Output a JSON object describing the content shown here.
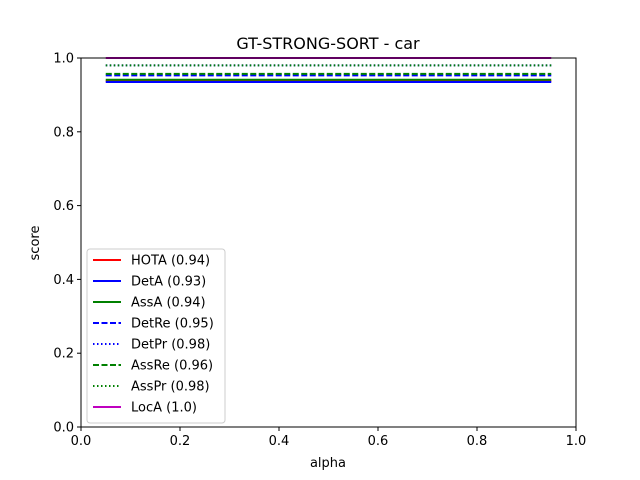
{
  "chart_data": {
    "type": "line",
    "title": "GT-STRONG-SORT - car",
    "xlabel": "alpha",
    "ylabel": "score",
    "xlim": [
      0.0,
      1.0
    ],
    "ylim": [
      0.0,
      1.0
    ],
    "xticks": [
      "0.0",
      "0.2",
      "0.4",
      "0.6",
      "0.8",
      "1.0"
    ],
    "yticks": [
      "0.0",
      "0.2",
      "0.4",
      "0.6",
      "0.8",
      "1.0"
    ],
    "grid": false,
    "legend_position": "lower-left",
    "x": [
      0.05,
      0.95
    ],
    "series": [
      {
        "name": "HOTA (0.94)",
        "values": [
          0.938,
          0.938
        ],
        "color": "#ff0000",
        "dash": "solid"
      },
      {
        "name": "DetA (0.93)",
        "values": [
          0.935,
          0.935
        ],
        "color": "#0000ff",
        "dash": "solid"
      },
      {
        "name": "AssA (0.94)",
        "values": [
          0.941,
          0.941
        ],
        "color": "#008000",
        "dash": "solid"
      },
      {
        "name": "DetRe (0.95)",
        "values": [
          0.953,
          0.953
        ],
        "color": "#0000ff",
        "dash": "dashed"
      },
      {
        "name": "DetPr (0.98)",
        "values": [
          0.98,
          0.98
        ],
        "color": "#0000ff",
        "dash": "dotted"
      },
      {
        "name": "AssRe (0.96)",
        "values": [
          0.957,
          0.957
        ],
        "color": "#008000",
        "dash": "dashed"
      },
      {
        "name": "AssPr (0.98)",
        "values": [
          0.98,
          0.98
        ],
        "color": "#008000",
        "dash": "dotted"
      },
      {
        "name": "LocA (1.0)",
        "values": [
          1.0,
          1.0
        ],
        "color": "#bf00bf",
        "dash": "solid"
      }
    ]
  }
}
